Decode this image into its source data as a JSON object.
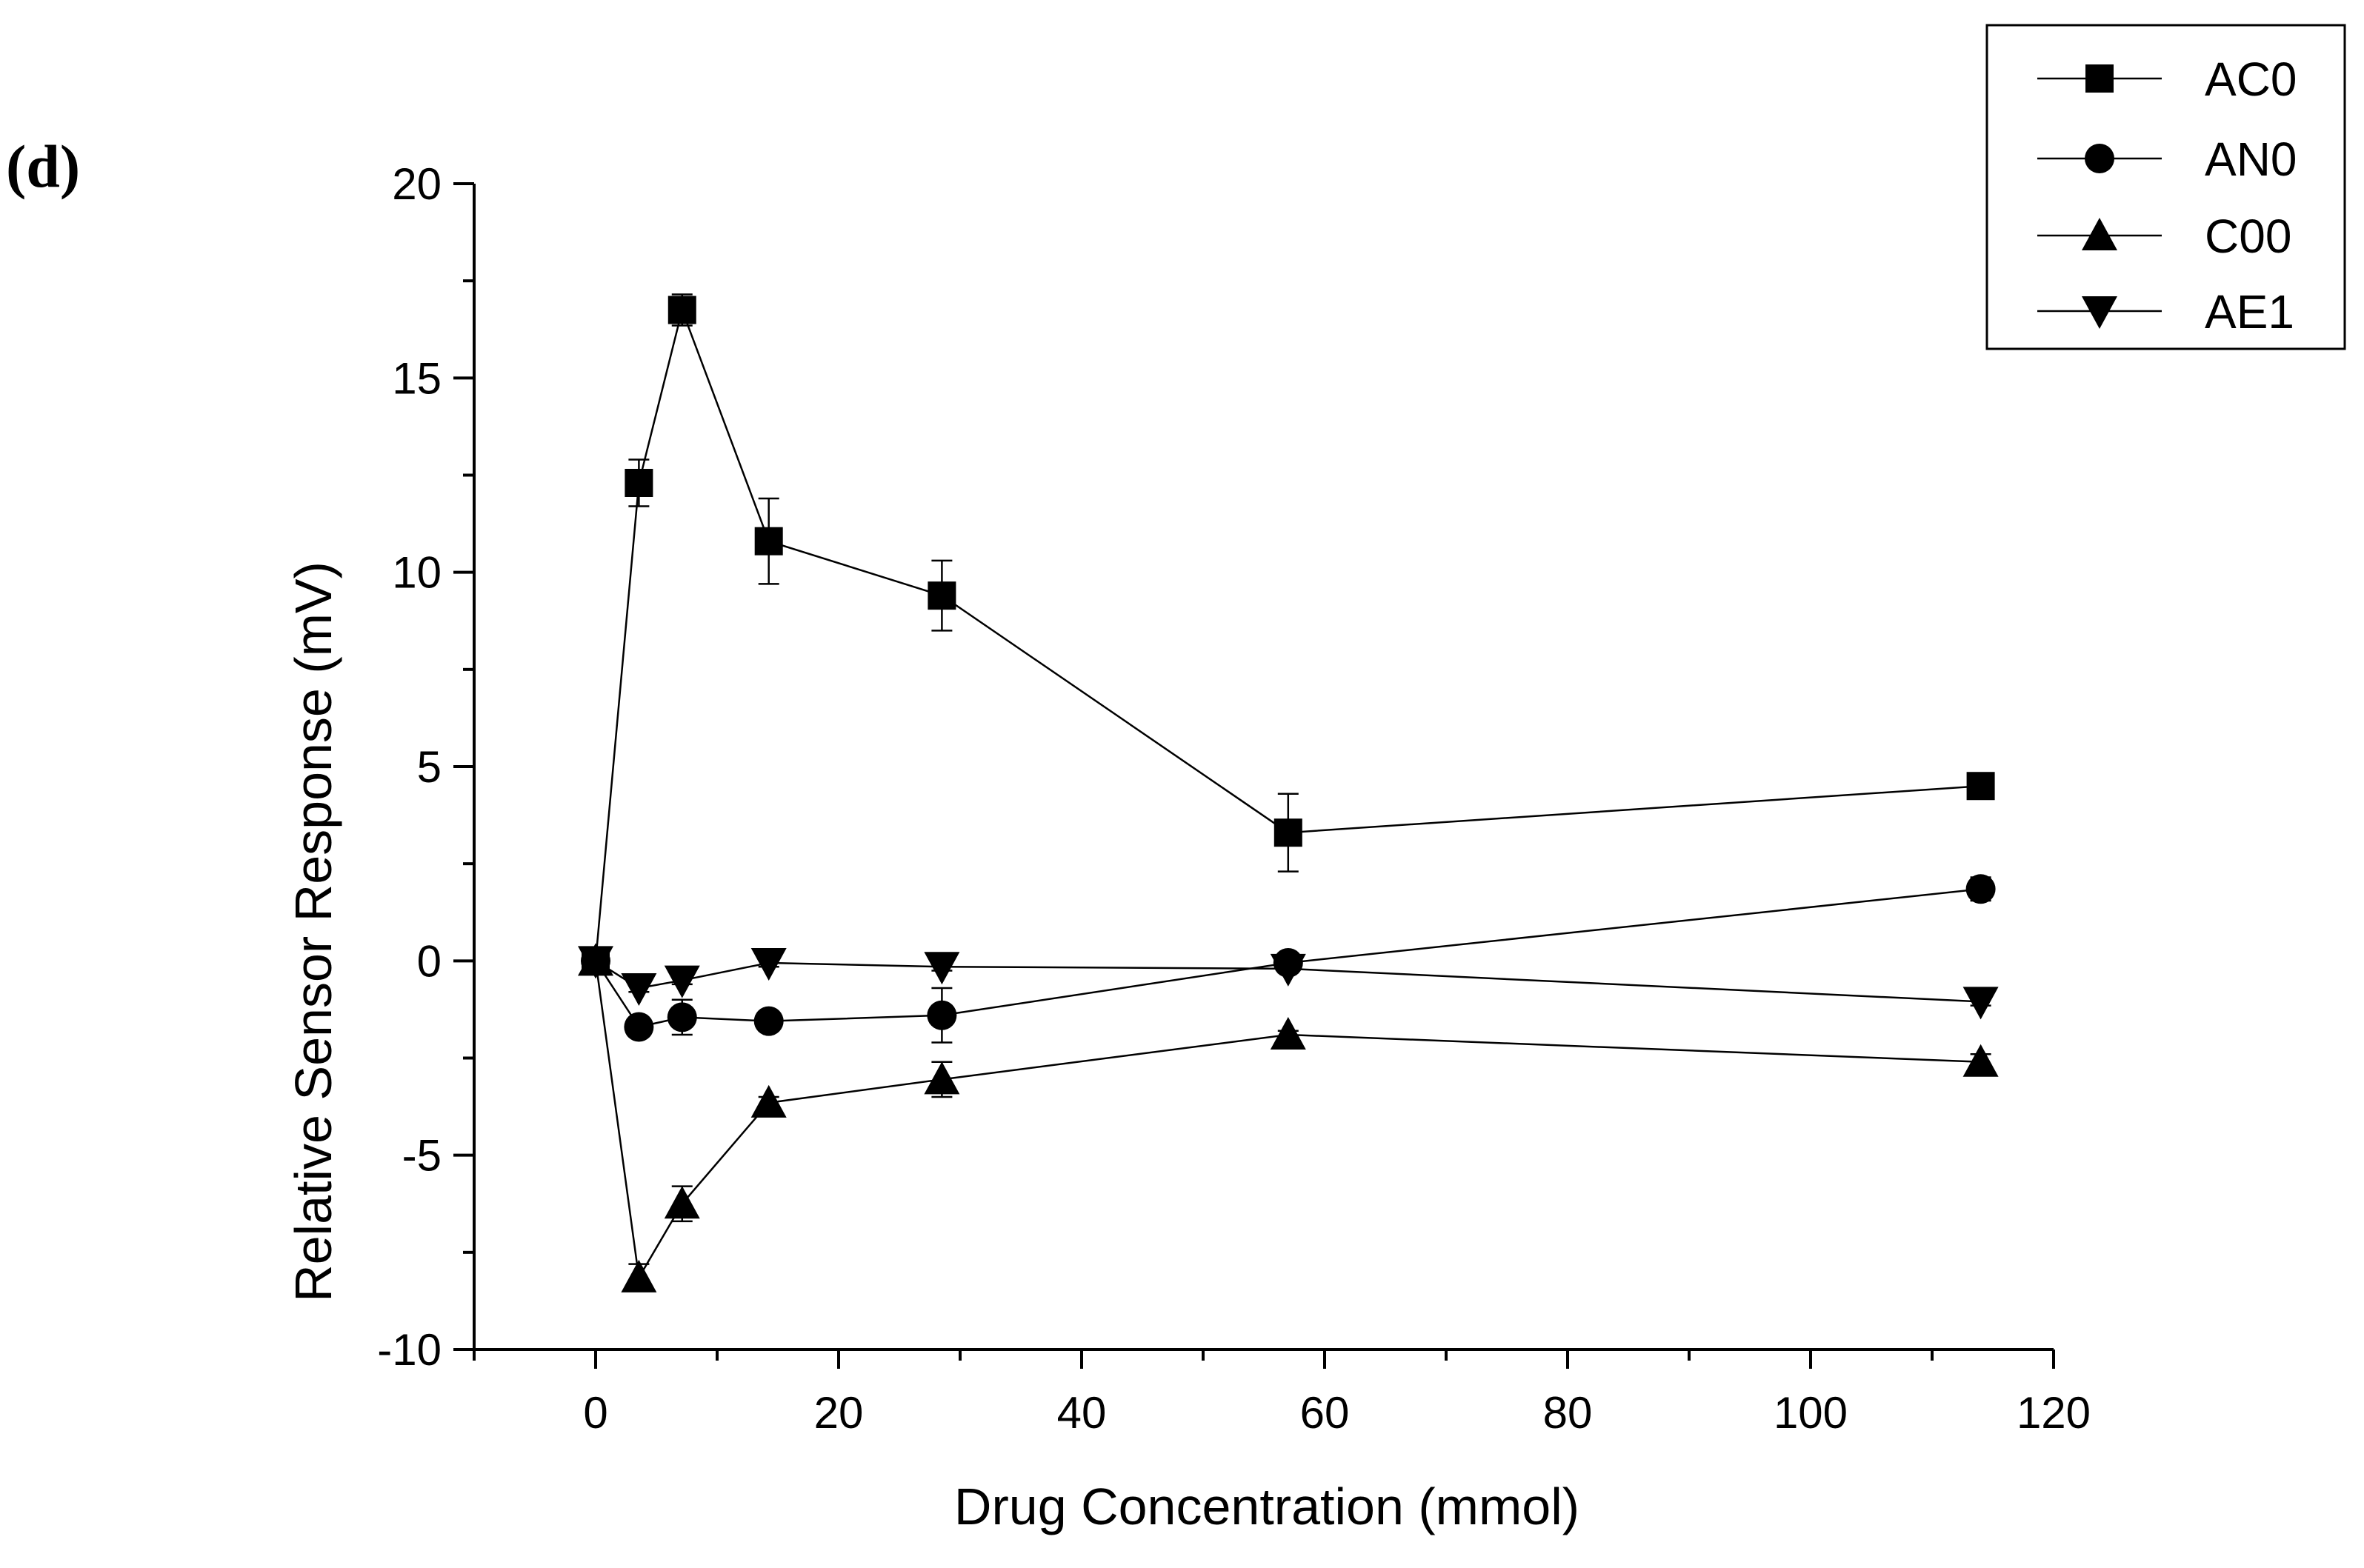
{
  "panel_label": "(d)",
  "colors": {
    "ink": "#000000",
    "background": "#ffffff"
  },
  "chart_data": {
    "type": "line",
    "title": "",
    "xlabel": "Drug Concentration (mmol)",
    "ylabel": "Relative Sensor Response (mV)",
    "xlim": [
      -10,
      120
    ],
    "ylim": [
      -10,
      20
    ],
    "x_ticks": [
      0,
      20,
      40,
      60,
      80,
      100,
      120
    ],
    "x_tick_labels": [
      "0",
      "20",
      "40",
      "60",
      "80",
      "100",
      "120"
    ],
    "x_minor_ticks": [
      -10,
      10,
      30,
      50,
      70,
      90,
      110
    ],
    "y_ticks": [
      -10,
      -5,
      0,
      5,
      10,
      15,
      20
    ],
    "y_tick_labels": [
      "-10",
      "-5",
      "0",
      "5",
      "10",
      "15",
      "20"
    ],
    "y_minor_ticks": [
      -7.5,
      -2.5,
      2.5,
      7.5,
      12.5,
      17.5
    ],
    "legend_position": "top-right",
    "x": [
      0,
      3.56,
      7.12,
      14.25,
      28.5,
      57,
      114
    ],
    "series": [
      {
        "name": "AC0",
        "marker": "square",
        "values": [
          0,
          12.3,
          16.75,
          10.8,
          9.4,
          3.3,
          4.5
        ],
        "errors": [
          0,
          0.6,
          0.4,
          1.1,
          0.9,
          1.0,
          0.2
        ]
      },
      {
        "name": "AN0",
        "marker": "circle",
        "values": [
          0,
          -1.7,
          -1.45,
          -1.55,
          -1.4,
          -0.05,
          1.85
        ],
        "errors": [
          0,
          0.2,
          0.45,
          0.2,
          0.7,
          0.15,
          0.3
        ]
      },
      {
        "name": "C00",
        "marker": "triangle-up",
        "values": [
          0,
          -8.15,
          -6.25,
          -3.65,
          -3.05,
          -1.9,
          -2.6
        ],
        "errors": [
          0,
          0.35,
          0.45,
          0.15,
          0.45,
          0.1,
          0.2
        ]
      },
      {
        "name": "AE1",
        "marker": "triangle-down",
        "values": [
          0,
          -0.7,
          -0.5,
          -0.05,
          -0.15,
          -0.2,
          -1.05
        ],
        "errors": [
          0,
          0.1,
          0.1,
          0.1,
          0.1,
          0.1,
          0.1
        ]
      }
    ]
  }
}
